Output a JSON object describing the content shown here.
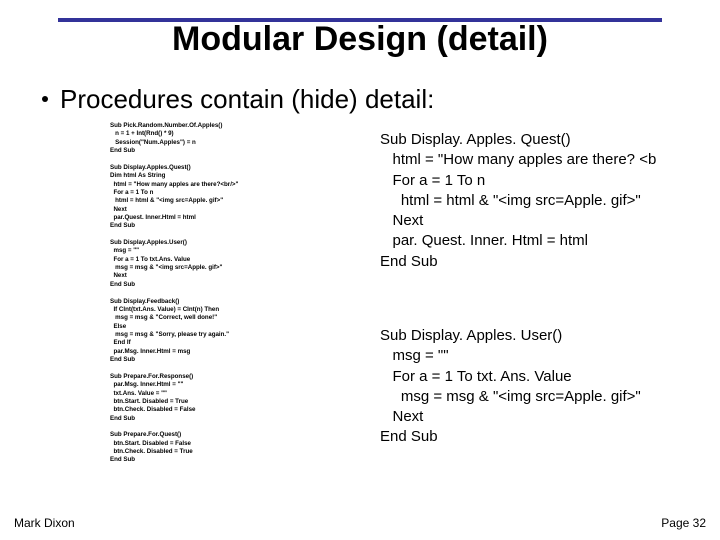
{
  "colors": {
    "rule": "#333399",
    "background": "#ffffff",
    "text": "#000000"
  },
  "title": "Modular Design (detail)",
  "bullet": "Procedures contain (hide) detail:",
  "code_left": "Sub Pick.Random.Number.Of.Apples()\n   n = 1 + Int(Rnd() * 9)\n   Session(\"Num.Apples\") = n\nEnd Sub\n\nSub Display.Apples.Quest()\nDim html As String\n  html = \"How many apples are there?<br/>\"\n  For a = 1 To n\n   html = html & \"<img src=Apple. gif>\"\n  Next\n  par.Quest. Inner.Html = html\nEnd Sub\n\nSub Display.Apples.User()\n  msg = \"\"\n  For a = 1 To txt.Ans. Value\n   msg = msg & \"<img src=Apple. gif>\"\n  Next\nEnd Sub\n\nSub Display.Feedback()\n  If CInt(txt.Ans. Value) = CInt(n) Then\n   msg = msg & \"Correct, well done!\"\n  Else\n   msg = msg & \"Sorry, please try again.\"\n  End If\n  par.Msg. Inner.Html = msg\nEnd Sub\n\nSub Prepare.For.Response()\n  par.Msg. Inner.Html = \"\"\n  txt.Ans. Value = \"\"\n  btn.Start. Disabled = True\n  btn.Check. Disabled = False\nEnd Sub\n\nSub Prepare.For.Quest()\n  btn.Start. Disabled = False\n  btn.Check. Disabled = True\nEnd Sub",
  "code_right_1": "Sub Display. Apples. Quest()\n   html = \"How many apples are there? <b\n   For a = 1 To n\n     html = html & \"<img src=Apple. gif>\"\n   Next\n   par. Quest. Inner. Html = html\nEnd Sub",
  "code_right_2": "Sub Display. Apples. User()\n   msg = \"\"\n   For a = 1 To txt. Ans. Value\n     msg = msg & \"<img src=Apple. gif>\"\n   Next\nEnd Sub",
  "footer": {
    "left": "Mark Dixon",
    "right": "Page 32"
  }
}
